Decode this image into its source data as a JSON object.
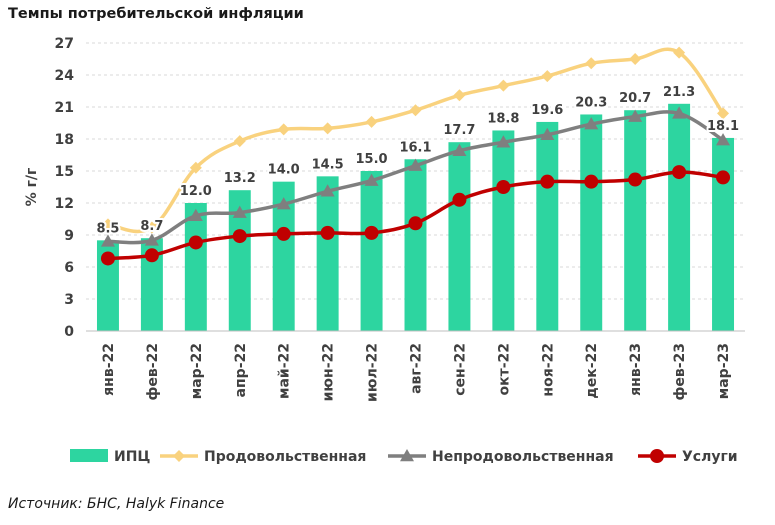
{
  "title": "Темпы потребительской инфляции",
  "source": "Источник: БНС, Halyk Finance",
  "chart_data": {
    "type": "bar",
    "categories": [
      "янв-22",
      "фев-22",
      "мар-22",
      "апр-22",
      "май-22",
      "июн-22",
      "июл-22",
      "авг-22",
      "сен-22",
      "окт-22",
      "ноя-22",
      "дек-22",
      "янв-23",
      "фев-23",
      "мар-23"
    ],
    "ylabel": "% г/г",
    "ylim": [
      0,
      27
    ],
    "yticks": [
      0,
      3,
      6,
      9,
      12,
      15,
      18,
      21,
      24,
      27
    ],
    "grid": true,
    "legend_position": "bottom",
    "series": [
      {
        "name": "ИПЦ",
        "kind": "bar",
        "color": "#2dd5a0",
        "values": [
          8.5,
          8.7,
          12.0,
          13.2,
          14.0,
          14.5,
          15.0,
          16.1,
          17.7,
          18.8,
          19.6,
          20.3,
          20.7,
          21.3,
          18.1
        ],
        "labels": [
          "8.5",
          "8.7",
          "12.0",
          "13.2",
          "14.0",
          "14.5",
          "15.0",
          "16.1",
          "17.7",
          "18.8",
          "19.6",
          "20.3",
          "20.7",
          "21.3",
          "18.1"
        ]
      },
      {
        "name": "Продовольственная",
        "kind": "line",
        "color": "#f9d27e",
        "marker": "diamond",
        "values": [
          10.0,
          9.7,
          15.3,
          17.8,
          18.9,
          19.0,
          19.6,
          20.7,
          22.1,
          23.0,
          23.9,
          25.1,
          25.5,
          26.1,
          20.4
        ]
      },
      {
        "name": "Непродовольственная",
        "kind": "line",
        "color": "#7f7f7f",
        "marker": "triangle",
        "values": [
          8.4,
          8.5,
          10.8,
          11.1,
          11.9,
          13.1,
          14.1,
          15.5,
          16.9,
          17.7,
          18.4,
          19.4,
          20.1,
          20.4,
          17.9
        ]
      },
      {
        "name": "Услуги",
        "kind": "line",
        "color": "#c00000",
        "marker": "circle",
        "values": [
          6.8,
          7.1,
          8.3,
          8.9,
          9.1,
          9.2,
          9.2,
          10.1,
          12.3,
          13.5,
          14.0,
          14.0,
          14.2,
          14.9,
          14.4
        ]
      }
    ]
  }
}
